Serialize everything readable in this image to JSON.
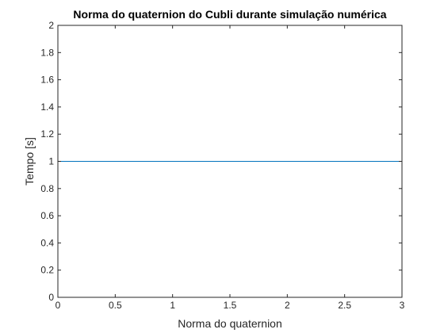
{
  "chart_data": {
    "type": "line",
    "title": "Norma do quaternion do Cubli durante simulação numérica",
    "xlabel": "Norma do quaternion",
    "ylabel": "Tempo [s]",
    "xlim": [
      0,
      3
    ],
    "ylim": [
      0,
      2
    ],
    "xticks": [
      0,
      0.5,
      1,
      1.5,
      2,
      2.5,
      3
    ],
    "xtick_labels": [
      "0",
      "0.5",
      "1",
      "1.5",
      "2",
      "2.5",
      "3"
    ],
    "yticks": [
      0,
      0.2,
      0.4,
      0.6,
      0.8,
      1,
      1.2,
      1.4,
      1.6,
      1.8,
      2
    ],
    "ytick_labels": [
      "0",
      "0.2",
      "0.4",
      "0.6",
      "0.8",
      "1",
      "1.2",
      "1.4",
      "1.6",
      "1.8",
      "2"
    ],
    "grid": false,
    "legend": "none",
    "series": [
      {
        "x": [
          0,
          3
        ],
        "y": [
          1,
          1
        ],
        "color": "#0072BD"
      }
    ]
  },
  "colors": {
    "axis": "#262626",
    "background": "#ffffff"
  }
}
